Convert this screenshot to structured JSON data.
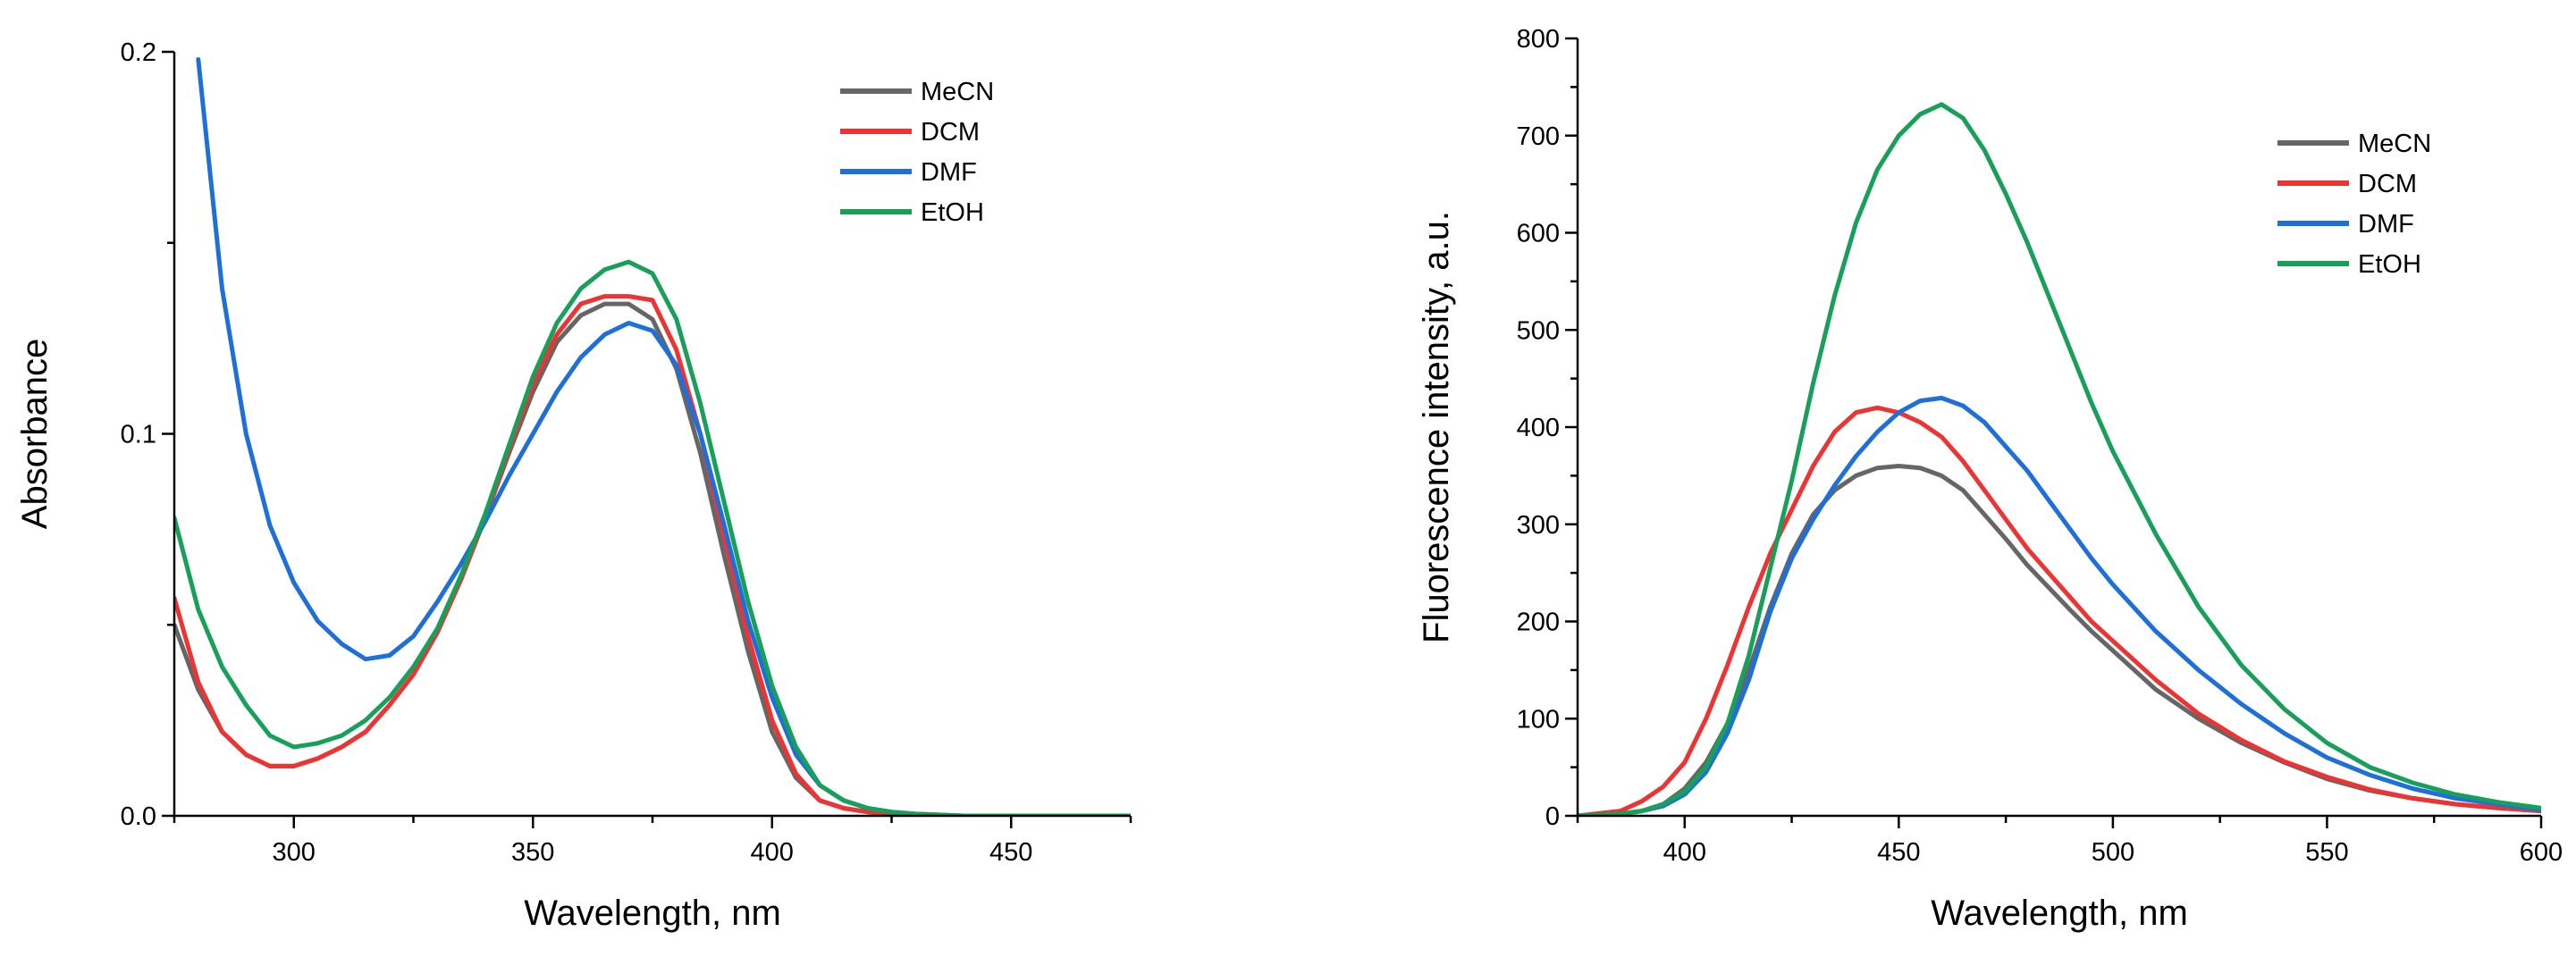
{
  "chart_data": [
    {
      "type": "line",
      "xlabel": "Wavelength, nm",
      "ylabel": "Absorbance",
      "xlim": [
        275,
        475
      ],
      "ylim": [
        0,
        0.2
      ],
      "xticks": [
        300,
        350,
        400,
        450
      ],
      "yticks": [
        0.0,
        0.1,
        0.2
      ],
      "xtick_labels": [
        "300",
        "350",
        "400",
        "450"
      ],
      "ytick_labels": [
        "0.0",
        "0.1",
        "0.2"
      ],
      "legend_position": "top-right",
      "series": [
        {
          "name": "MeCN",
          "color": "#666666",
          "x": [
            275,
            280,
            285,
            290,
            295,
            300,
            305,
            310,
            315,
            320,
            325,
            330,
            335,
            340,
            345,
            350,
            355,
            360,
            365,
            370,
            375,
            380,
            385,
            390,
            395,
            400,
            405,
            410,
            415,
            420,
            425,
            430,
            440,
            450,
            460,
            475
          ],
          "y": [
            0.05,
            0.033,
            0.022,
            0.016,
            0.013,
            0.013,
            0.015,
            0.018,
            0.022,
            0.029,
            0.037,
            0.048,
            0.062,
            0.078,
            0.095,
            0.111,
            0.124,
            0.131,
            0.134,
            0.134,
            0.13,
            0.117,
            0.095,
            0.068,
            0.043,
            0.022,
            0.01,
            0.004,
            0.002,
            0.001,
            0.0005,
            0,
            0,
            0,
            0,
            0
          ]
        },
        {
          "name": "DCM",
          "color": "#ee3333",
          "x": [
            275,
            280,
            285,
            290,
            295,
            300,
            305,
            310,
            315,
            320,
            325,
            330,
            335,
            340,
            345,
            350,
            355,
            360,
            365,
            370,
            375,
            380,
            385,
            390,
            395,
            400,
            405,
            410,
            415,
            420,
            425,
            430,
            440,
            450,
            460,
            475
          ],
          "y": [
            0.057,
            0.035,
            0.022,
            0.016,
            0.013,
            0.013,
            0.015,
            0.018,
            0.022,
            0.029,
            0.037,
            0.048,
            0.062,
            0.078,
            0.096,
            0.113,
            0.126,
            0.134,
            0.136,
            0.136,
            0.135,
            0.122,
            0.1,
            0.073,
            0.047,
            0.025,
            0.011,
            0.004,
            0.002,
            0.001,
            0.0005,
            0,
            0,
            0,
            0,
            0
          ]
        },
        {
          "name": "DMF",
          "color": "#1e6fd9",
          "x": [
            280,
            285,
            290,
            295,
            300,
            305,
            310,
            315,
            320,
            325,
            330,
            335,
            340,
            345,
            350,
            355,
            360,
            365,
            370,
            375,
            380,
            385,
            390,
            395,
            400,
            405,
            410,
            415,
            420,
            425,
            430,
            440,
            450,
            460,
            475
          ],
          "y": [
            0.198,
            0.138,
            0.1,
            0.076,
            0.061,
            0.051,
            0.045,
            0.041,
            0.042,
            0.047,
            0.056,
            0.066,
            0.077,
            0.089,
            0.1,
            0.111,
            0.12,
            0.126,
            0.129,
            0.127,
            0.118,
            0.1,
            0.076,
            0.051,
            0.031,
            0.016,
            0.008,
            0.004,
            0.002,
            0.001,
            0.0005,
            0,
            0,
            0,
            0
          ]
        },
        {
          "name": "EtOH",
          "color": "#18a05a",
          "x": [
            275,
            280,
            285,
            290,
            295,
            300,
            305,
            310,
            315,
            320,
            325,
            330,
            335,
            340,
            345,
            350,
            355,
            360,
            365,
            370,
            375,
            380,
            385,
            390,
            395,
            400,
            405,
            410,
            415,
            420,
            425,
            430,
            440,
            450,
            460,
            475
          ],
          "y": [
            0.078,
            0.054,
            0.039,
            0.029,
            0.021,
            0.018,
            0.019,
            0.021,
            0.025,
            0.031,
            0.039,
            0.049,
            0.063,
            0.079,
            0.097,
            0.115,
            0.129,
            0.138,
            0.143,
            0.145,
            0.142,
            0.13,
            0.108,
            0.082,
            0.056,
            0.034,
            0.018,
            0.008,
            0.004,
            0.002,
            0.001,
            0.0005,
            0,
            0,
            0,
            0
          ]
        }
      ]
    },
    {
      "type": "line",
      "xlabel": "Wavelength, nm",
      "ylabel": "Fluorescence intensity, a.u.",
      "xlim": [
        375,
        600
      ],
      "ylim": [
        0,
        800
      ],
      "xticks": [
        400,
        450,
        500,
        550,
        600
      ],
      "yticks": [
        0,
        100,
        200,
        300,
        400,
        500,
        600,
        700,
        800
      ],
      "xtick_labels": [
        "400",
        "450",
        "500",
        "550",
        "600"
      ],
      "ytick_labels": [
        "0",
        "100",
        "200",
        "300",
        "400",
        "500",
        "600",
        "700",
        "800"
      ],
      "legend_position": "top-right",
      "series": [
        {
          "name": "MeCN",
          "color": "#666666",
          "x": [
            375,
            385,
            390,
            395,
            400,
            405,
            410,
            415,
            420,
            425,
            430,
            435,
            440,
            445,
            450,
            455,
            460,
            465,
            470,
            475,
            480,
            485,
            490,
            495,
            500,
            510,
            520,
            530,
            540,
            550,
            560,
            570,
            580,
            590,
            600
          ],
          "y": [
            0,
            2,
            5,
            12,
            28,
            55,
            95,
            150,
            215,
            270,
            310,
            335,
            350,
            358,
            360,
            358,
            350,
            335,
            310,
            285,
            258,
            235,
            212,
            190,
            170,
            130,
            100,
            75,
            55,
            38,
            26,
            18,
            12,
            8,
            5
          ]
        },
        {
          "name": "DCM",
          "color": "#ee3333",
          "x": [
            375,
            385,
            390,
            395,
            400,
            405,
            410,
            415,
            420,
            425,
            430,
            435,
            440,
            445,
            450,
            455,
            460,
            465,
            470,
            475,
            480,
            485,
            490,
            495,
            500,
            510,
            520,
            530,
            540,
            550,
            560,
            570,
            580,
            590,
            600
          ],
          "y": [
            0,
            5,
            15,
            30,
            55,
            100,
            155,
            215,
            270,
            315,
            360,
            395,
            415,
            420,
            415,
            405,
            390,
            365,
            335,
            305,
            275,
            250,
            225,
            200,
            180,
            140,
            105,
            78,
            56,
            40,
            27,
            18,
            12,
            8,
            5
          ]
        },
        {
          "name": "DMF",
          "color": "#1e6fd9",
          "x": [
            375,
            385,
            390,
            395,
            400,
            405,
            410,
            415,
            420,
            425,
            430,
            435,
            440,
            445,
            450,
            455,
            460,
            465,
            470,
            475,
            480,
            485,
            490,
            495,
            500,
            510,
            520,
            530,
            540,
            550,
            560,
            570,
            580,
            590,
            600
          ],
          "y": [
            0,
            2,
            5,
            10,
            22,
            45,
            85,
            140,
            210,
            265,
            305,
            340,
            370,
            395,
            415,
            427,
            430,
            422,
            405,
            380,
            355,
            325,
            295,
            265,
            238,
            190,
            150,
            115,
            85,
            60,
            42,
            28,
            18,
            12,
            6
          ]
        },
        {
          "name": "EtOH",
          "color": "#18a05a",
          "x": [
            375,
            385,
            390,
            395,
            400,
            405,
            410,
            415,
            420,
            425,
            430,
            435,
            440,
            445,
            450,
            455,
            460,
            465,
            470,
            475,
            480,
            485,
            490,
            495,
            500,
            510,
            520,
            530,
            540,
            550,
            560,
            570,
            580,
            590,
            600
          ],
          "y": [
            0,
            2,
            5,
            12,
            25,
            50,
            95,
            165,
            255,
            345,
            445,
            535,
            610,
            665,
            700,
            722,
            732,
            718,
            685,
            640,
            590,
            535,
            480,
            425,
            375,
            290,
            215,
            155,
            110,
            75,
            50,
            34,
            22,
            14,
            8
          ]
        }
      ]
    }
  ]
}
